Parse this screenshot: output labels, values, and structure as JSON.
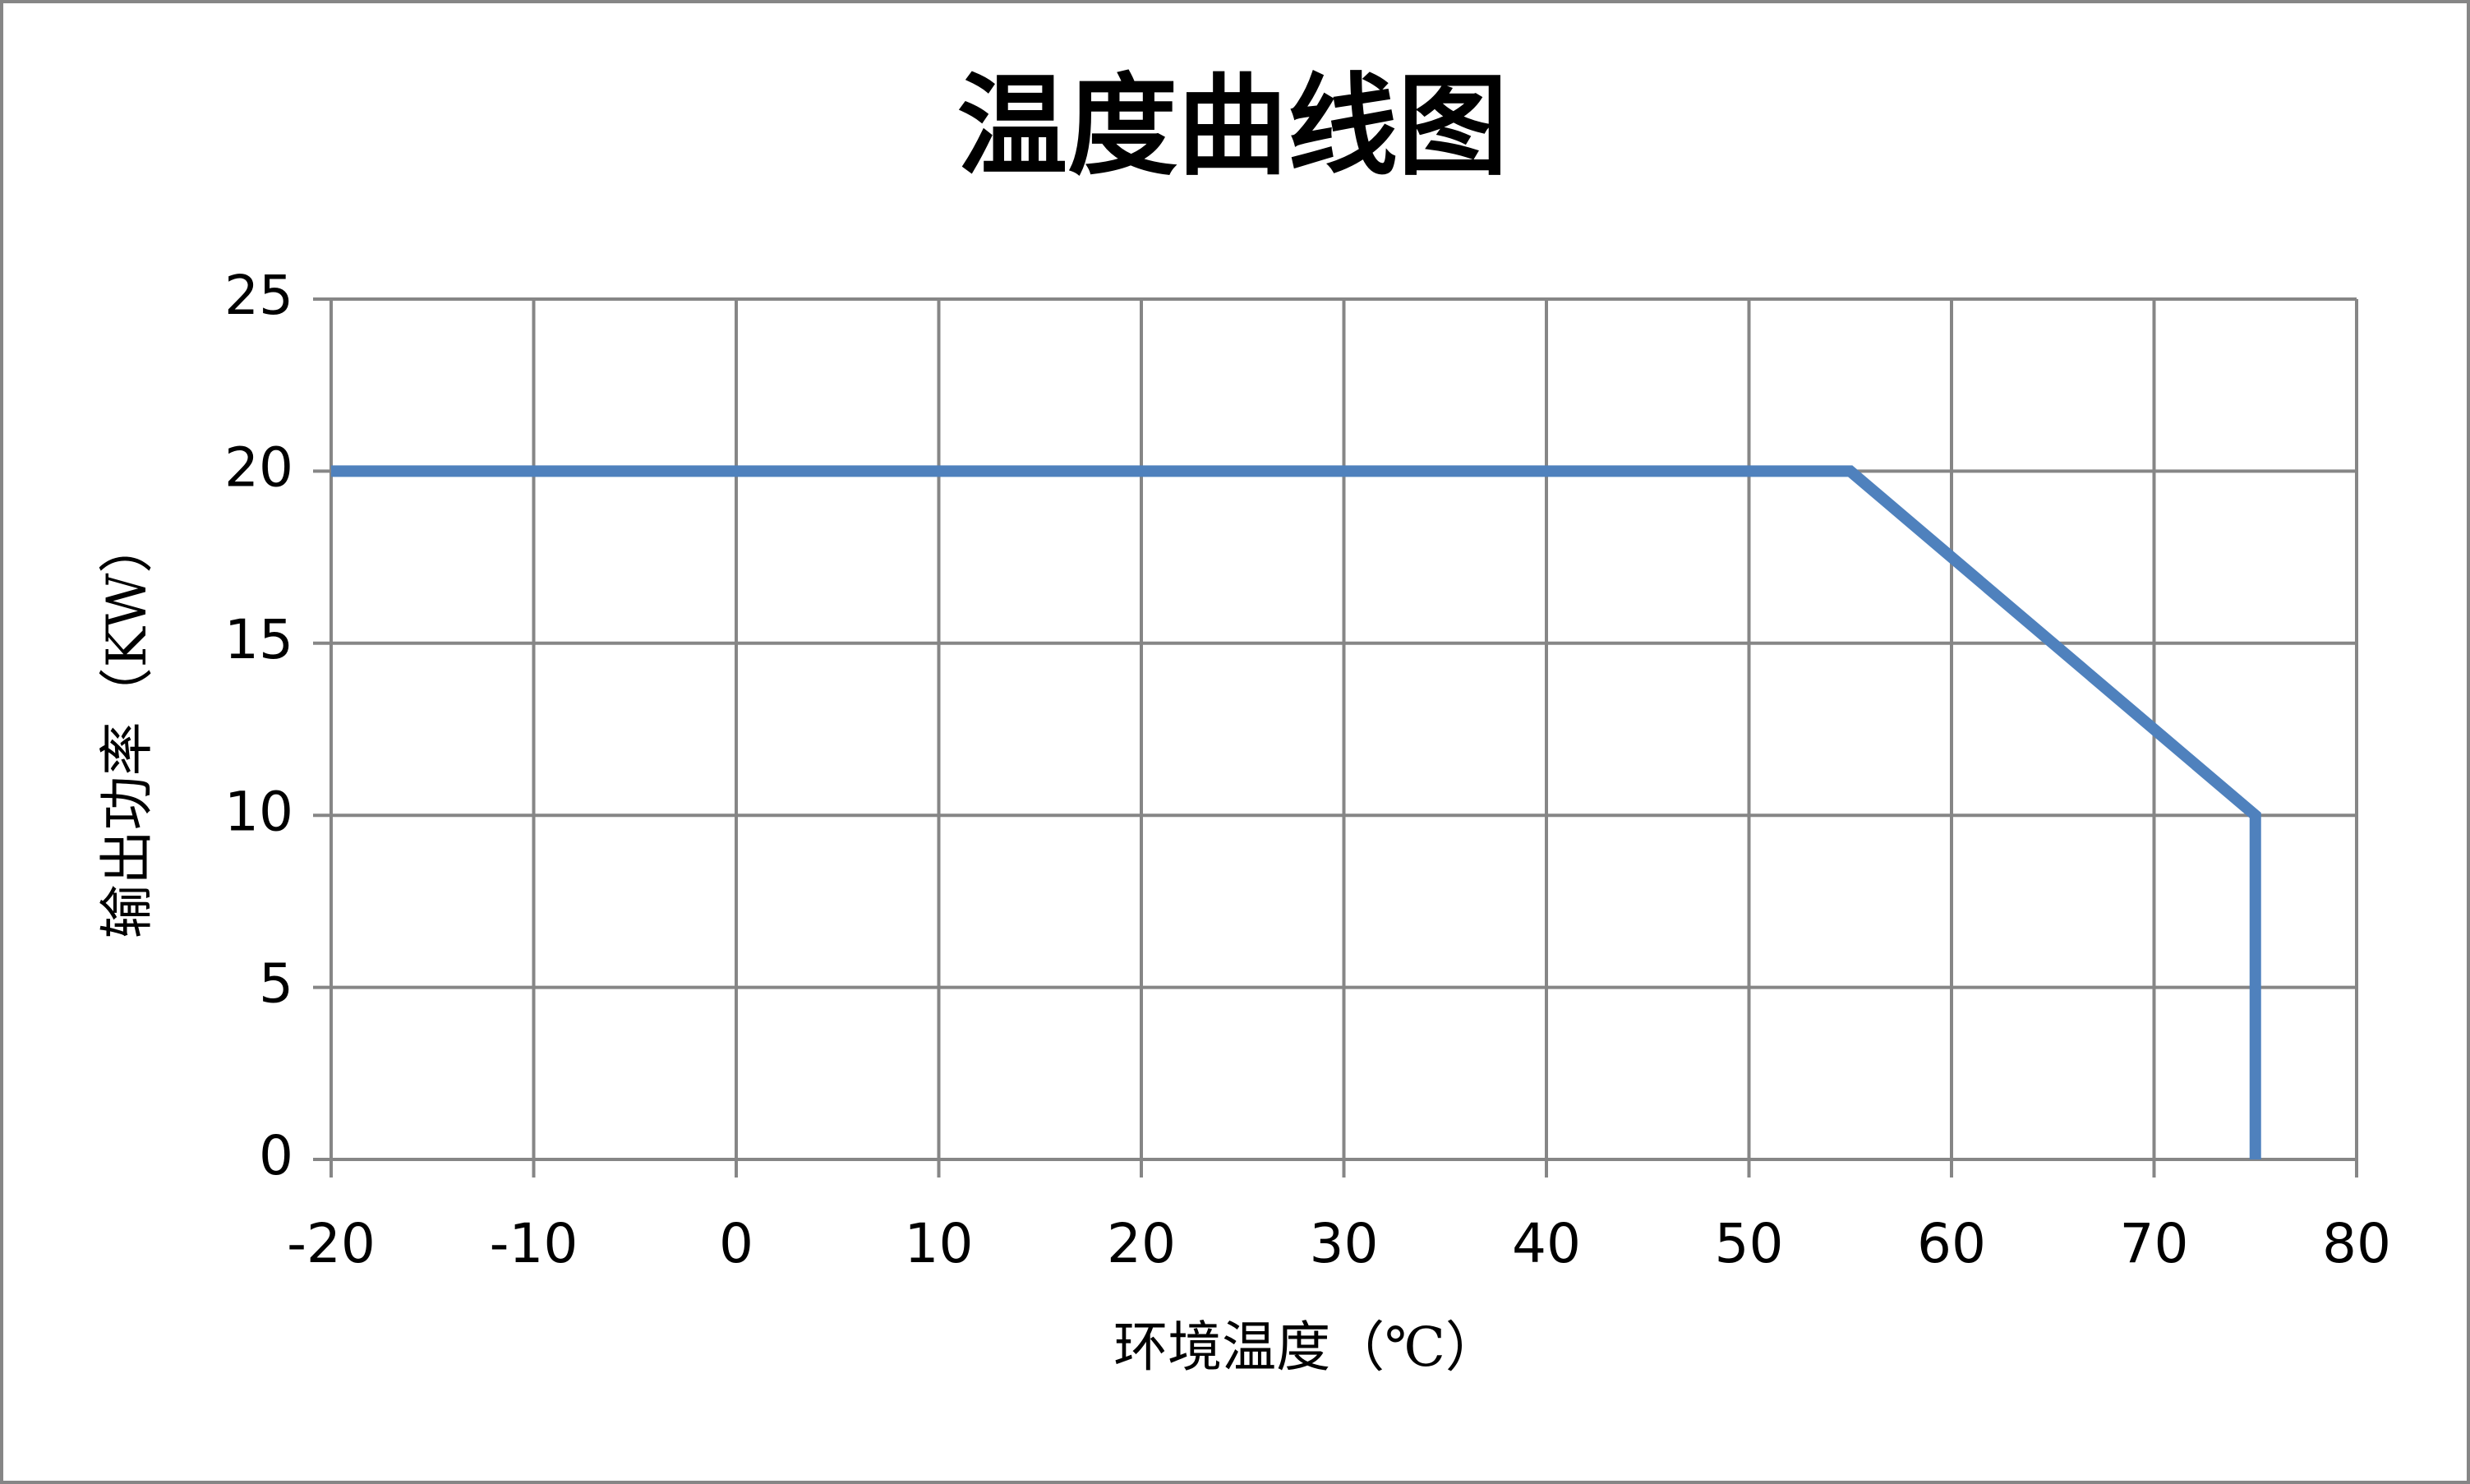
{
  "chart_data": {
    "type": "line",
    "title": "温度曲线图",
    "x_label": "环境温度（℃）",
    "y_label": "输出功率（KW）",
    "series": [
      {
        "name": "输出功率",
        "color": "#4f81bd",
        "x": [
          -20,
          55,
          75,
          75
        ],
        "values": [
          20,
          20,
          10,
          0
        ]
      }
    ],
    "xlim": [
      -20,
      80
    ],
    "xticks": [
      -20,
      -10,
      0,
      10,
      20,
      30,
      40,
      50,
      60,
      70,
      80
    ],
    "ylim": [
      0,
      25
    ],
    "yticks": [
      0,
      5,
      10,
      15,
      20,
      25
    ],
    "grid": true
  }
}
